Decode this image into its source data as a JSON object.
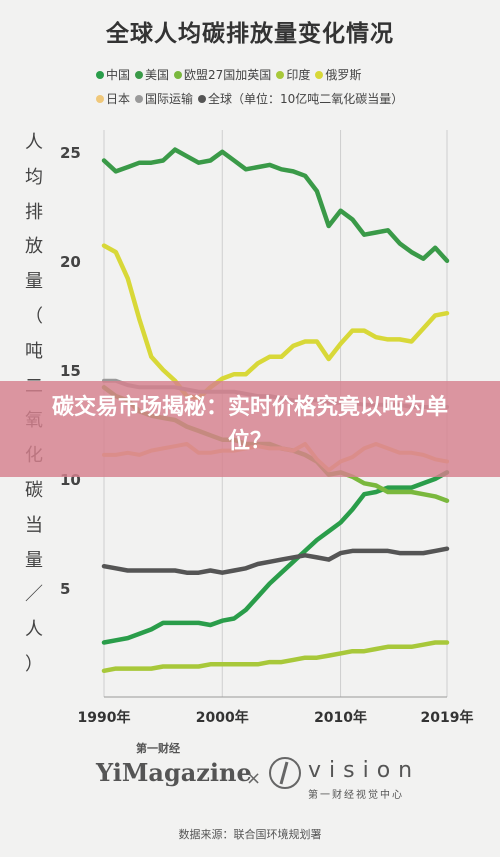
{
  "chart_data": {
    "type": "line",
    "title": "全球人均碳排放量变化情况",
    "ylabel": "人均排放量（吨二氧化碳当量／人）",
    "ylim": [
      0,
      26
    ],
    "xlim": [
      1990,
      2019
    ],
    "x_ticks": [
      "1990年",
      "2000年",
      "2010年",
      "2019年"
    ],
    "y_ticks": [
      5,
      10,
      15,
      20,
      25
    ],
    "grid": false,
    "legend_position": "top",
    "x": [
      1990,
      1991,
      1992,
      1993,
      1994,
      1995,
      1996,
      1997,
      1998,
      1999,
      2000,
      2001,
      2002,
      2003,
      2004,
      2005,
      2006,
      2007,
      2008,
      2009,
      2010,
      2011,
      2012,
      2013,
      2014,
      2015,
      2016,
      2017,
      2018,
      2019
    ],
    "series": [
      {
        "name": "中国",
        "color": "#2a9d4a",
        "values": [
          2.5,
          2.6,
          2.7,
          2.9,
          3.1,
          3.4,
          3.4,
          3.4,
          3.4,
          3.3,
          3.5,
          3.6,
          4.0,
          4.6,
          5.2,
          5.7,
          6.2,
          6.7,
          7.2,
          7.6,
          8.0,
          8.6,
          9.3,
          9.4,
          9.6,
          9.6,
          9.6,
          9.8,
          10.0,
          10.3
        ]
      },
      {
        "name": "美国",
        "color": "#3a9a48",
        "values": [
          24.6,
          24.1,
          24.3,
          24.5,
          24.5,
          24.6,
          25.1,
          24.8,
          24.5,
          24.6,
          25.0,
          24.6,
          24.2,
          24.3,
          24.4,
          24.2,
          24.1,
          23.9,
          23.2,
          21.6,
          22.3,
          21.9,
          21.2,
          21.3,
          21.4,
          20.8,
          20.4,
          20.1,
          20.6,
          20.0
        ]
      },
      {
        "name": "欧盟27国加英国",
        "color": "#7ab83d",
        "values": [
          14.2,
          13.8,
          13.6,
          13.1,
          12.9,
          12.8,
          12.7,
          12.4,
          12.2,
          12.0,
          11.8,
          11.8,
          11.6,
          11.6,
          11.6,
          11.4,
          11.3,
          11.1,
          10.8,
          10.2,
          10.3,
          10.1,
          9.8,
          9.7,
          9.4,
          9.4,
          9.4,
          9.3,
          9.2,
          9.0
        ]
      },
      {
        "name": "印度",
        "color": "#a8c83a",
        "values": [
          1.2,
          1.3,
          1.3,
          1.3,
          1.3,
          1.4,
          1.4,
          1.4,
          1.4,
          1.5,
          1.5,
          1.5,
          1.5,
          1.5,
          1.6,
          1.6,
          1.7,
          1.8,
          1.8,
          1.9,
          2.0,
          2.1,
          2.1,
          2.2,
          2.3,
          2.3,
          2.3,
          2.4,
          2.5,
          2.5
        ]
      },
      {
        "name": "俄罗斯",
        "color": "#d8d838",
        "values": [
          20.7,
          20.4,
          19.2,
          17.3,
          15.6,
          15.0,
          14.5,
          13.8,
          13.7,
          14.2,
          14.6,
          14.8,
          14.8,
          15.3,
          15.6,
          15.6,
          16.1,
          16.3,
          16.3,
          15.5,
          16.2,
          16.8,
          16.8,
          16.5,
          16.4,
          16.4,
          16.3,
          16.9,
          17.5,
          17.6
        ]
      },
      {
        "name": "日本",
        "color": "#f0c87a",
        "values": [
          11.1,
          11.1,
          11.2,
          11.1,
          11.3,
          11.4,
          11.5,
          11.6,
          11.2,
          11.2,
          11.3,
          11.3,
          11.4,
          11.5,
          11.4,
          11.4,
          11.3,
          11.6,
          10.9,
          10.4,
          10.8,
          11.0,
          11.4,
          11.6,
          11.4,
          11.2,
          11.2,
          11.1,
          10.9,
          10.8
        ]
      },
      {
        "name": "国际运输",
        "color": "#9a9a9a",
        "values": [
          14.5,
          14.5,
          14.3,
          14.2,
          14.2,
          14.2,
          14.2,
          14.1,
          14.0,
          14.0,
          14.0,
          14.0,
          13.9,
          13.8,
          13.8,
          13.7,
          13.6,
          13.6,
          13.6,
          13.5,
          13.5,
          13.5,
          13.4,
          13.4,
          13.4,
          13.4,
          13.3,
          13.3,
          13.3,
          13.3
        ]
      },
      {
        "name": "全球（单位：10亿吨二氧化碳当量）",
        "color": "#555555",
        "values": [
          6.0,
          5.9,
          5.8,
          5.8,
          5.8,
          5.8,
          5.8,
          5.7,
          5.7,
          5.8,
          5.7,
          5.8,
          5.9,
          6.1,
          6.2,
          6.3,
          6.4,
          6.5,
          6.4,
          6.3,
          6.6,
          6.7,
          6.7,
          6.7,
          6.7,
          6.6,
          6.6,
          6.6,
          6.7,
          6.8
        ]
      }
    ]
  },
  "legend": [
    {
      "label": "中国",
      "color": "#2a9d4a"
    },
    {
      "label": "美国",
      "color": "#3a9a48"
    },
    {
      "label": "欧盟27国加英国",
      "color": "#7ab83d"
    },
    {
      "label": "印度",
      "color": "#a8c83a"
    },
    {
      "label": "俄罗斯",
      "color": "#d8d838"
    },
    {
      "label": "日本",
      "color": "#f0c87a"
    },
    {
      "label": "国际运输",
      "color": "#9a9a9a"
    },
    {
      "label": "全球（单位：10亿吨二氧化碳当量）",
      "color": "#555555"
    }
  ],
  "ylabel_chars": [
    "人",
    "均",
    "排",
    "放",
    "量",
    "（",
    "吨",
    "二",
    "氧",
    "化",
    "碳",
    "当",
    "量",
    "／",
    "人",
    "）"
  ],
  "banner": {
    "text": "碳交易市场揭秘：实时价格究竟以吨为单位？"
  },
  "footer": {
    "logo_left": "YiMagazine",
    "logo_left_cn": "第一财经",
    "separator": "×",
    "logo_right": "vision",
    "logo_right_cn": "第一财经视觉中心",
    "source": "数据来源：联合国环境规划署"
  }
}
